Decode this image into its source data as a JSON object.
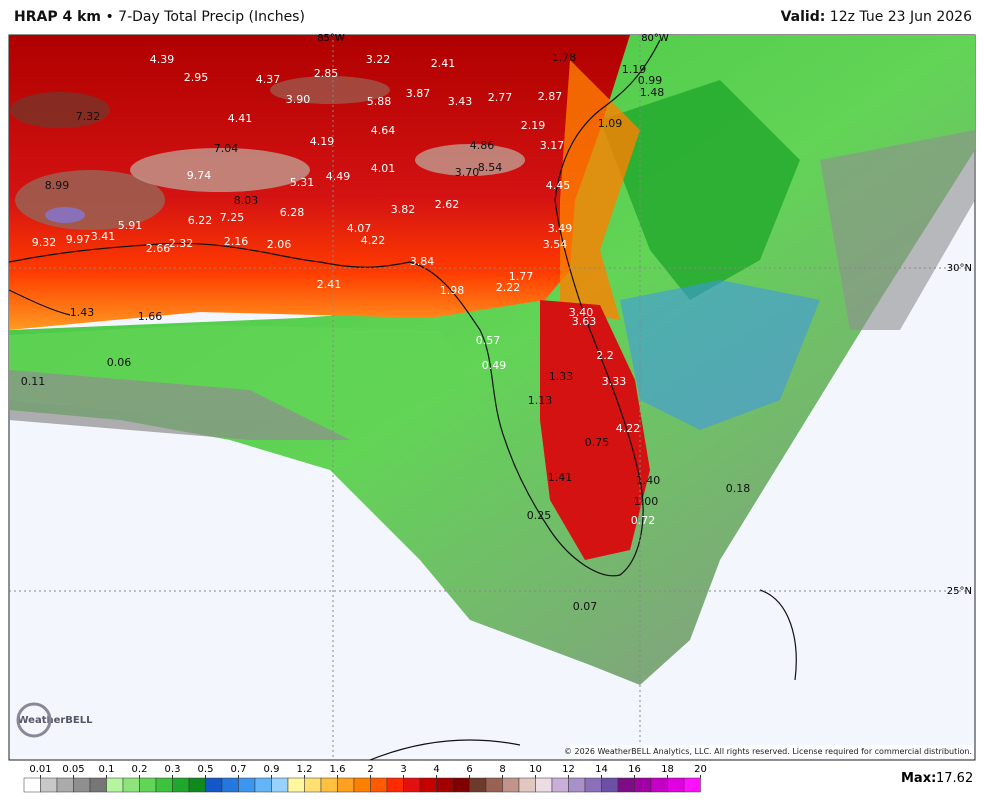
{
  "header": {
    "product": "HRAP 4 km",
    "separator": "•",
    "title": "7-Day Total Precip (Inches)",
    "valid_label": "Valid:",
    "valid_time": "12z Tue 23 Jun 2026"
  },
  "map": {
    "lon_labels": [
      "85°W",
      "80°W"
    ],
    "lat_labels": [
      "30°N",
      "25°N"
    ],
    "point_labels": [
      "4.39",
      "2.95",
      "4.37",
      "2.85",
      "3.22",
      "2.41",
      "1.78",
      "1.19",
      "0.99",
      "1.48",
      "7.32",
      "3.90",
      "5.88",
      "3.87",
      "3.43",
      "2.77",
      "2.87",
      "1.09",
      "4.41",
      "4.64",
      "2.19",
      "4.19",
      "4.86",
      "3.17",
      "7.04",
      "8.54",
      "3.70",
      "4.01",
      "4.49",
      "5.31",
      "9.74",
      "4.45",
      "8.99",
      "8.03",
      "6.28",
      "3.82",
      "2.62",
      "7.25",
      "6.22",
      "4.07",
      "5.91",
      "3.49",
      "9.32",
      "9.97",
      "3.41",
      "2.66",
      "2.32",
      "2.16",
      "2.06",
      "4.22",
      "3.54",
      "3.84",
      "1.77",
      "2.41",
      "1.98",
      "2.22",
      "1.43",
      "1.66",
      "3.40",
      "3.63",
      "0.57",
      "2.2",
      "0.49",
      "1.33",
      "3.33",
      "0.06",
      "0.11",
      "1.13",
      "4.22",
      "0.75",
      "1.41",
      "1.40",
      "1.00",
      "0.18",
      "0.25",
      "0.72",
      "0.07"
    ],
    "logo": "WeatherBELL",
    "copyright": "© 2026 WeatherBELL Analytics, LLC. All rights reserved. License required for commercial distribution."
  },
  "legend": {
    "bins": [
      0.01,
      0.05,
      0.1,
      0.2,
      0.3,
      0.5,
      0.7,
      0.9,
      1.2,
      1.6,
      2,
      3,
      4,
      6,
      8,
      10,
      12,
      14,
      16,
      18,
      20
    ],
    "colors": [
      "#ffffff",
      "#c8c8c8",
      "#ababab",
      "#8f8f8f",
      "#767676",
      "#b4f5a0",
      "#8ce47a",
      "#62d456",
      "#3cc23c",
      "#20a82c",
      "#108a1e",
      "#1458c8",
      "#2478e0",
      "#3c96f0",
      "#64b4f8",
      "#96d2fa",
      "#fff8a0",
      "#ffe070",
      "#ffc040",
      "#ffa020",
      "#ff8000",
      "#ff5a00",
      "#ff2a00",
      "#e41010",
      "#c40000",
      "#a20000",
      "#800000",
      "#6e3a2c",
      "#9a6252",
      "#c0948a",
      "#e2c6c0",
      "#ecdce4",
      "#c8aed8",
      "#a890c8",
      "#8a70b8",
      "#6c50a6",
      "#7e0c86",
      "#a000a4",
      "#c400c4",
      "#e000e0",
      "#ff10ff"
    ]
  },
  "footer": {
    "max_label": "Max:",
    "max_value": 17.62
  }
}
